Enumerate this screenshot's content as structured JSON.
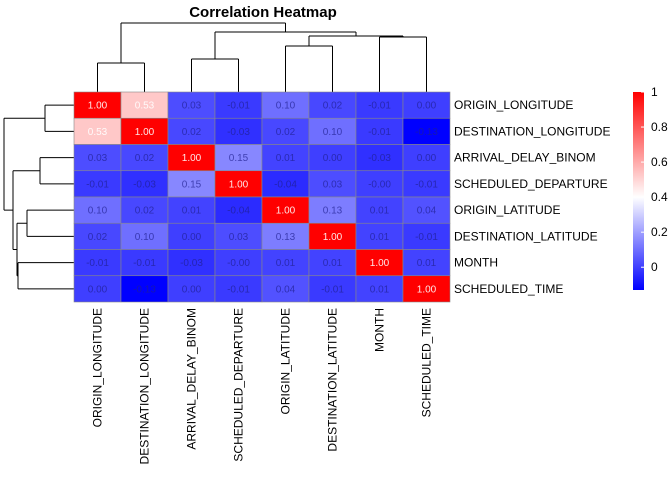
{
  "chart_data": {
    "type": "heatmap",
    "title": "Correlation Heatmap",
    "rows": [
      "ORIGIN_LONGITUDE",
      "DESTINATION_LONGITUDE",
      "ARRIVAL_DELAY_BINOM",
      "SCHEDULED_DEPARTURE",
      "ORIGIN_LATITUDE",
      "DESTINATION_LATITUDE",
      "MONTH",
      "SCHEDULED_TIME"
    ],
    "columns": [
      "ORIGIN_LONGITUDE",
      "DESTINATION_LONGITUDE",
      "ARRIVAL_DELAY_BINOM",
      "SCHEDULED_DEPARTURE",
      "ORIGIN_LATITUDE",
      "DESTINATION_LATITUDE",
      "MONTH",
      "SCHEDULED_TIME"
    ],
    "values": [
      [
        1.0,
        0.53,
        0.03,
        -0.01,
        0.1,
        0.02,
        -0.01,
        0.0
      ],
      [
        0.53,
        1.0,
        0.02,
        -0.03,
        0.02,
        0.1,
        -0.01,
        -0.13
      ],
      [
        0.03,
        0.02,
        1.0,
        0.15,
        0.01,
        0.0,
        -0.03,
        0.0
      ],
      [
        -0.01,
        -0.03,
        0.15,
        1.0,
        -0.04,
        0.03,
        -0.0,
        -0.01
      ],
      [
        0.1,
        0.02,
        0.01,
        -0.04,
        1.0,
        0.13,
        0.01,
        0.04
      ],
      [
        0.02,
        0.1,
        0.0,
        0.03,
        0.13,
        1.0,
        0.01,
        -0.01
      ],
      [
        -0.01,
        -0.01,
        -0.03,
        -0.0,
        0.01,
        0.01,
        1.0,
        0.01
      ],
      [
        0.0,
        -0.13,
        0.0,
        -0.01,
        0.04,
        -0.01,
        0.01,
        1.0
      ]
    ],
    "labels": [
      [
        "1.00",
        "0.53",
        "0.03",
        "-0.01",
        "0.10",
        "0.02",
        "-0.01",
        "0.00"
      ],
      [
        "0.53",
        "1.00",
        "0.02",
        "-0.03",
        "0.02",
        "0.10",
        "-0.01",
        "-0.13"
      ],
      [
        "0.03",
        "0.02",
        "1.00",
        "0.15",
        "0.01",
        "0.00",
        "-0.03",
        "0.00"
      ],
      [
        "-0.01",
        "-0.03",
        "0.15",
        "1.00",
        "-0.04",
        "0.03",
        "-0.00",
        "-0.01"
      ],
      [
        "0.10",
        "0.02",
        "0.01",
        "-0.04",
        "1.00",
        "0.13",
        "0.01",
        "0.04"
      ],
      [
        "0.02",
        "0.10",
        "0.00",
        "0.03",
        "0.13",
        "1.00",
        "0.01",
        "-0.01"
      ],
      [
        "-0.01",
        "-0.01",
        "-0.03",
        "-0.00",
        "0.01",
        "0.01",
        "1.00",
        "0.01"
      ],
      [
        "0.00",
        "-0.13",
        "0.00",
        "-0.01",
        "0.04",
        "-0.01",
        "0.01",
        "1.00"
      ]
    ],
    "color_scale": {
      "min": -0.13,
      "max": 1.0,
      "midpoint": 0.4,
      "low_color": "#0000ff",
      "mid_color": "#ffffff",
      "high_color": "#ff0000",
      "ticks": [
        "1",
        "0.8",
        "0.6",
        "0.4",
        "0.2",
        "0"
      ],
      "tick_values": [
        1.0,
        0.8,
        0.6,
        0.4,
        0.2,
        0.0
      ]
    },
    "dendrograms": {
      "rows": true,
      "columns": true
    },
    "grid_line_color": "#888888"
  }
}
